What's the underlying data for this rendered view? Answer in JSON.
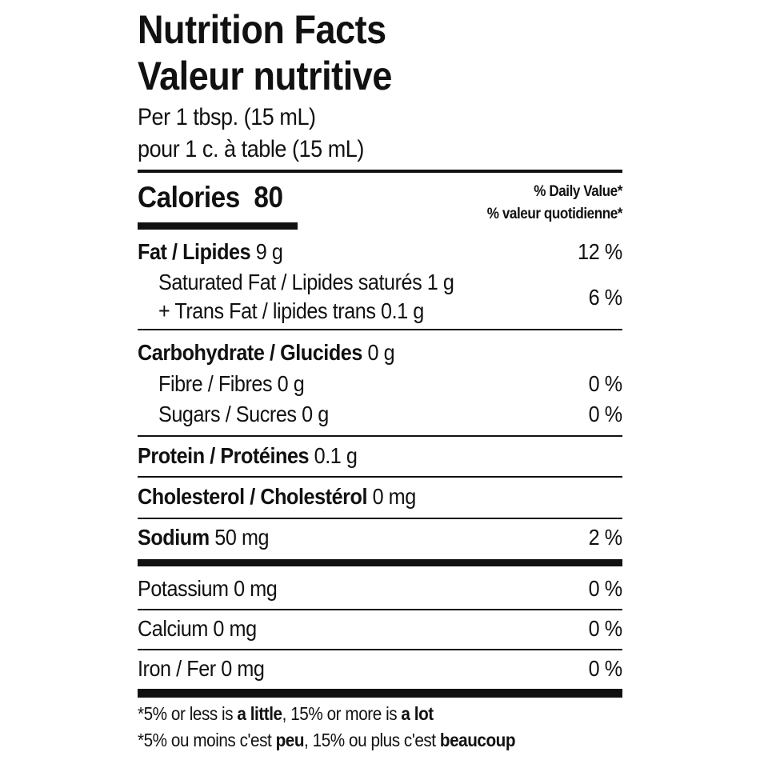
{
  "title_en": "Nutrition Facts",
  "title_fr": "Valeur nutritive",
  "serving_en": "Per 1 tbsp. (15 mL)",
  "serving_fr": "pour 1 c. à table (15 mL)",
  "calories": {
    "label": "Calories",
    "value": "80"
  },
  "dv_header_en": "% Daily Value*",
  "dv_header_fr": "% valeur quotidienne*",
  "nutrients": {
    "fat": {
      "label": "Fat / Lipides",
      "amount": "9 g",
      "dv": "12 %"
    },
    "sat": {
      "label": "Saturated Fat / Lipides saturés 1 g"
    },
    "trans": {
      "label": "+ Trans Fat / lipides trans 0.1 g"
    },
    "sat_trans_dv": "6 %",
    "carb": {
      "label": "Carbohydrate / Glucides",
      "amount": "0 g"
    },
    "fibre": {
      "label": "Fibre / Fibres 0 g",
      "dv": "0 %"
    },
    "sugars": {
      "label": "Sugars / Sucres 0 g",
      "dv": "0 %"
    },
    "protein": {
      "label": "Protein / Protéines",
      "amount": "0.1 g"
    },
    "cholesterol": {
      "label": "Cholesterol / Cholestérol",
      "amount": "0 mg"
    },
    "sodium": {
      "label": "Sodium",
      "amount": "50 mg",
      "dv": "2 %"
    },
    "potassium": {
      "label": "Potassium 0 mg",
      "dv": "0 %"
    },
    "calcium": {
      "label": "Calcium 0 mg",
      "dv": "0 %"
    },
    "iron": {
      "label": "Iron / Fer 0 mg",
      "dv": "0 %"
    }
  },
  "footnote_en": {
    "a": "*5% or less is ",
    "b": "a little",
    "c": ", 15% or more is ",
    "d": "a lot"
  },
  "footnote_fr": {
    "a": "*5% ou moins c'est ",
    "b": "peu",
    "c": ", 15% ou plus c'est ",
    "d": "beaucoup"
  }
}
